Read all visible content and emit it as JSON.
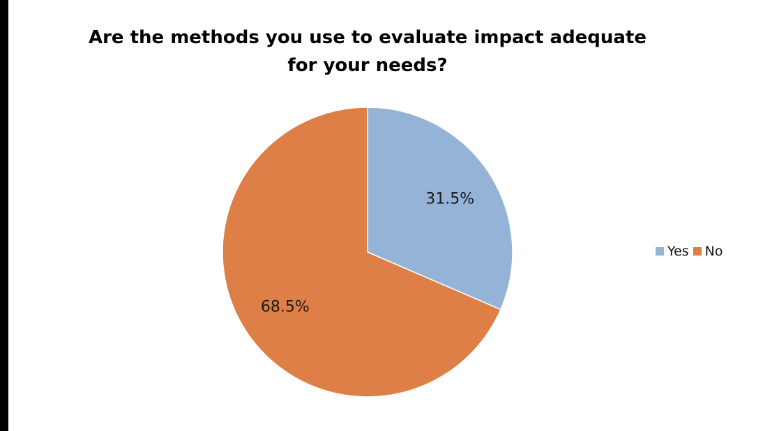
{
  "chart_data": {
    "type": "pie",
    "title": "Are the methods you use to evaluate impact adequate for your needs?",
    "title_lines": [
      "Are the methods you use to evaluate impact adequate",
      "for your needs?"
    ],
    "slices": [
      {
        "name": "Yes",
        "value": 31.5,
        "label": "31.5%",
        "color": "#95b3d7"
      },
      {
        "name": "No",
        "value": 68.5,
        "label": "68.5%",
        "color": "#dd7f46"
      }
    ],
    "legend": {
      "placement": "right",
      "items": [
        "Yes",
        "No"
      ]
    }
  }
}
